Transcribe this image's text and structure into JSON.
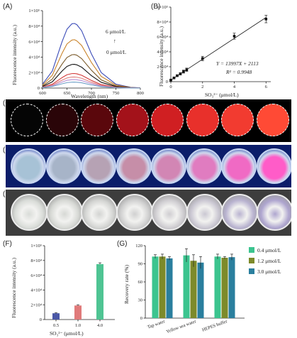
{
  "panels": {
    "A": {
      "label": "(A)",
      "ylabel": "Fluorescence intensity (a.u.)",
      "xlabel": "Wavelength (nm)",
      "xticks": [
        "600",
        "650",
        "700",
        "750",
        "800"
      ],
      "yticks": [
        "0",
        "2×10⁴",
        "4×10⁴",
        "6×10⁴",
        "8×10⁴",
        "1×10⁵"
      ],
      "annot_top": "6 μmol/L",
      "annot_bottom": "0 μmol/L",
      "arrow": "↑"
    },
    "B": {
      "label": "(B)",
      "ylabel": "Fluorescence intensity (a.u.)",
      "xlabel": "SO₃²⁻ (μmol/L)",
      "xticks": [
        "0",
        "2",
        "4",
        "6"
      ],
      "yticks": [
        "0",
        "2×10⁴",
        "4×10⁴",
        "6×10⁴",
        "8×10⁴",
        "1×10⁵"
      ],
      "equation": "Y = 13997X + 2113",
      "r2": "R² = 0.9948"
    },
    "C": {
      "label": "(C)"
    },
    "D": {
      "label": "(D)"
    },
    "E": {
      "label": "(E)"
    },
    "F": {
      "label": "(F)",
      "ylabel": "Fluorescence intensity (a.u.)",
      "xlabel": "SO₃²⁻ (μmol/L)",
      "yticks": [
        "0",
        "2×10⁴",
        "4×10⁴",
        "6×10⁴",
        "8×10⁴",
        "1×10⁵"
      ]
    },
    "G": {
      "label": "(G)",
      "ylabel": "Recovery rate (%)",
      "yticks": [
        "0",
        "30",
        "60",
        "90",
        "120"
      ]
    }
  },
  "wells": {
    "C_colors": [
      "#050505",
      "#2a0508",
      "#5a070c",
      "#a3121a",
      "#d01f22",
      "#e8302b",
      "#f23b30",
      "#ff4a35"
    ],
    "D_colors": [
      "#a7c2d6",
      "#a7b4c8",
      "#b6a2b4",
      "#c68ea8",
      "#d286b4",
      "#e07cc0",
      "#f06ac4",
      "#ff5cc8"
    ],
    "E_colors": [
      "#d9dcd8",
      "#d6d8d4",
      "#d3d4d2",
      "#d0d0d0",
      "#cfcdd1",
      "#cac7d2",
      "#b9b3d0",
      "#aea5cf"
    ]
  },
  "chart_data": [
    {
      "panel": "A",
      "type": "line",
      "x": [
        600,
        620,
        640,
        650,
        660,
        665,
        670,
        680,
        700,
        720,
        750,
        780,
        800
      ],
      "series": [
        {
          "color": "#3a4bb8",
          "values": [
            5000,
            22000,
            60000,
            76000,
            83000,
            83500,
            82000,
            74000,
            44000,
            20000,
            5000,
            1000,
            300
          ]
        },
        {
          "color": "#c9832a",
          "values": [
            3800,
            16500,
            45000,
            57000,
            62000,
            62500,
            61000,
            55000,
            33000,
            15000,
            3800,
            800,
            200
          ]
        },
        {
          "color": "#7a5a2a",
          "values": [
            2700,
            11500,
            31000,
            39500,
            43000,
            43300,
            42500,
            38000,
            23000,
            10500,
            2600,
            500,
            150
          ]
        },
        {
          "color": "#111111",
          "values": [
            1900,
            8000,
            22000,
            28000,
            30500,
            30700,
            30000,
            27000,
            16000,
            7400,
            1900,
            400,
            100
          ]
        },
        {
          "color": "#d23a3a",
          "values": [
            1200,
            5000,
            13500,
            17200,
            18700,
            18800,
            18400,
            16500,
            9800,
            4500,
            1100,
            250,
            80
          ]
        },
        {
          "color": "#e07f7f",
          "values": [
            900,
            3800,
            10200,
            13000,
            14200,
            14300,
            14000,
            12600,
            7500,
            3400,
            850,
            200,
            60
          ]
        },
        {
          "color": "#b78fd1",
          "values": [
            700,
            2900,
            7800,
            10000,
            10800,
            10900,
            10700,
            9600,
            5700,
            2600,
            650,
            150,
            50
          ]
        },
        {
          "color": "#6fa0c7",
          "values": [
            500,
            2100,
            5500,
            7000,
            7600,
            7700,
            7500,
            6800,
            4000,
            1800,
            450,
            100,
            40
          ]
        }
      ],
      "ylim": [
        0,
        100000
      ],
      "xlim": [
        600,
        800
      ]
    },
    {
      "panel": "B",
      "type": "scatter",
      "x": [
        0,
        0.2,
        0.4,
        0.6,
        0.8,
        1,
        2,
        4,
        6
      ],
      "y": [
        2100,
        5000,
        8000,
        10500,
        13500,
        16000,
        31000,
        61000,
        84000
      ],
      "err": [
        800,
        1000,
        1000,
        1500,
        2000,
        2200,
        3000,
        4000,
        5000
      ],
      "fit": {
        "slope": 13997,
        "intercept": 2113
      },
      "xlim": [
        0,
        6.3
      ],
      "ylim": [
        0,
        100000
      ]
    },
    {
      "panel": "F",
      "type": "bar",
      "categories": [
        "0.5",
        "1.0",
        "4.0"
      ],
      "values": [
        8500,
        19000,
        75000
      ],
      "err": [
        800,
        1000,
        1800
      ],
      "colors": [
        "#4a57a6",
        "#e07a7a",
        "#4fc493"
      ],
      "ylim": [
        0,
        100000
      ]
    },
    {
      "panel": "G",
      "type": "bar",
      "categories": [
        "Tap water",
        "Yellow sea water",
        "HEPES buffer"
      ],
      "series": [
        {
          "name": "0.4 μmol/L",
          "values": [
            102,
            104,
            102
          ],
          "err": [
            3,
            11,
            4
          ]
        },
        {
          "name": "1.2 μmol/L",
          "values": [
            102,
            95,
            100
          ],
          "err": [
            4,
            10,
            2
          ]
        },
        {
          "name": "3.0 μmol/L",
          "values": [
            99,
            92,
            101
          ],
          "err": [
            3,
            10,
            5
          ]
        }
      ],
      "series_colors": [
        "#3cc48f",
        "#7d8a2a",
        "#2a7f9e"
      ],
      "ylim": [
        0,
        120
      ]
    }
  ]
}
